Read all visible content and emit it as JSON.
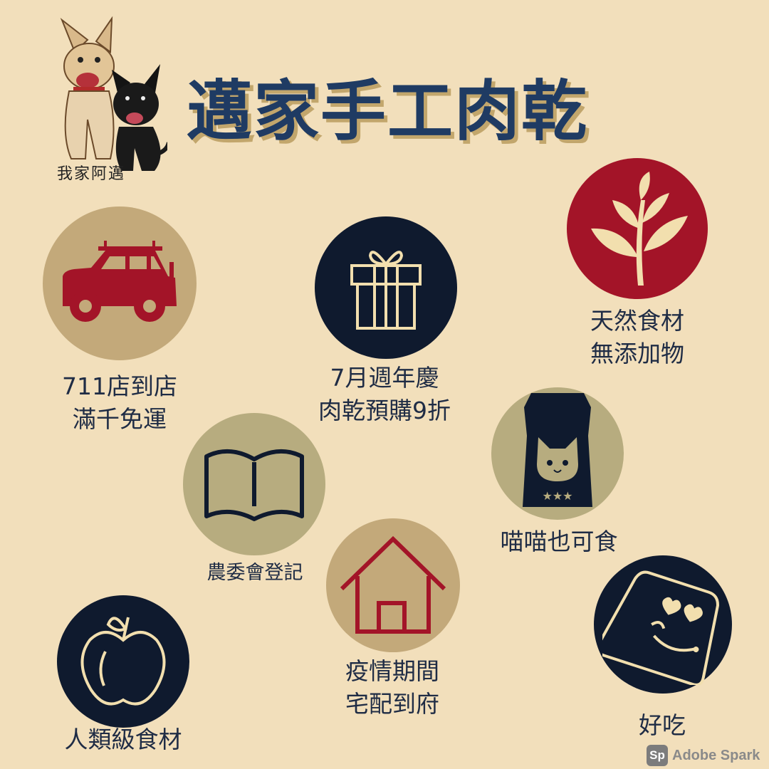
{
  "header": {
    "title": "邁家手工肉乾",
    "logo_caption": "我家阿邁"
  },
  "features": [
    {
      "label_line1": "711店到店",
      "label_line2": "滿千免運",
      "icon": "car-icon"
    },
    {
      "label_line1": "7月週年慶",
      "label_line2": "肉乾預購9折",
      "icon": "gift-icon"
    },
    {
      "label_line1": "天然食材",
      "label_line2": "無添加物",
      "icon": "leaf-icon"
    },
    {
      "label_line1": "農委會登記",
      "icon": "book-icon"
    },
    {
      "label_line1": "喵喵也可食",
      "icon": "cat-food-bag-icon"
    },
    {
      "label_line1": "疫情期間",
      "label_line2": "宅配到府",
      "icon": "house-icon"
    },
    {
      "label_line1": "人類級食材",
      "icon": "apple-icon"
    },
    {
      "label_line1": "好吃",
      "icon": "happy-face-icon"
    }
  ],
  "watermark": {
    "badge": "Sp",
    "text": "Adobe Spark"
  },
  "colors": {
    "background": "#f2dfbb",
    "title": "#1f3b63",
    "title_shadow": "#c2a66c",
    "tan": "#c3a97a",
    "olive": "#b7ac7f",
    "navy": "#0f1a2e",
    "crimson": "#a31428",
    "cream": "#f2dfae"
  }
}
